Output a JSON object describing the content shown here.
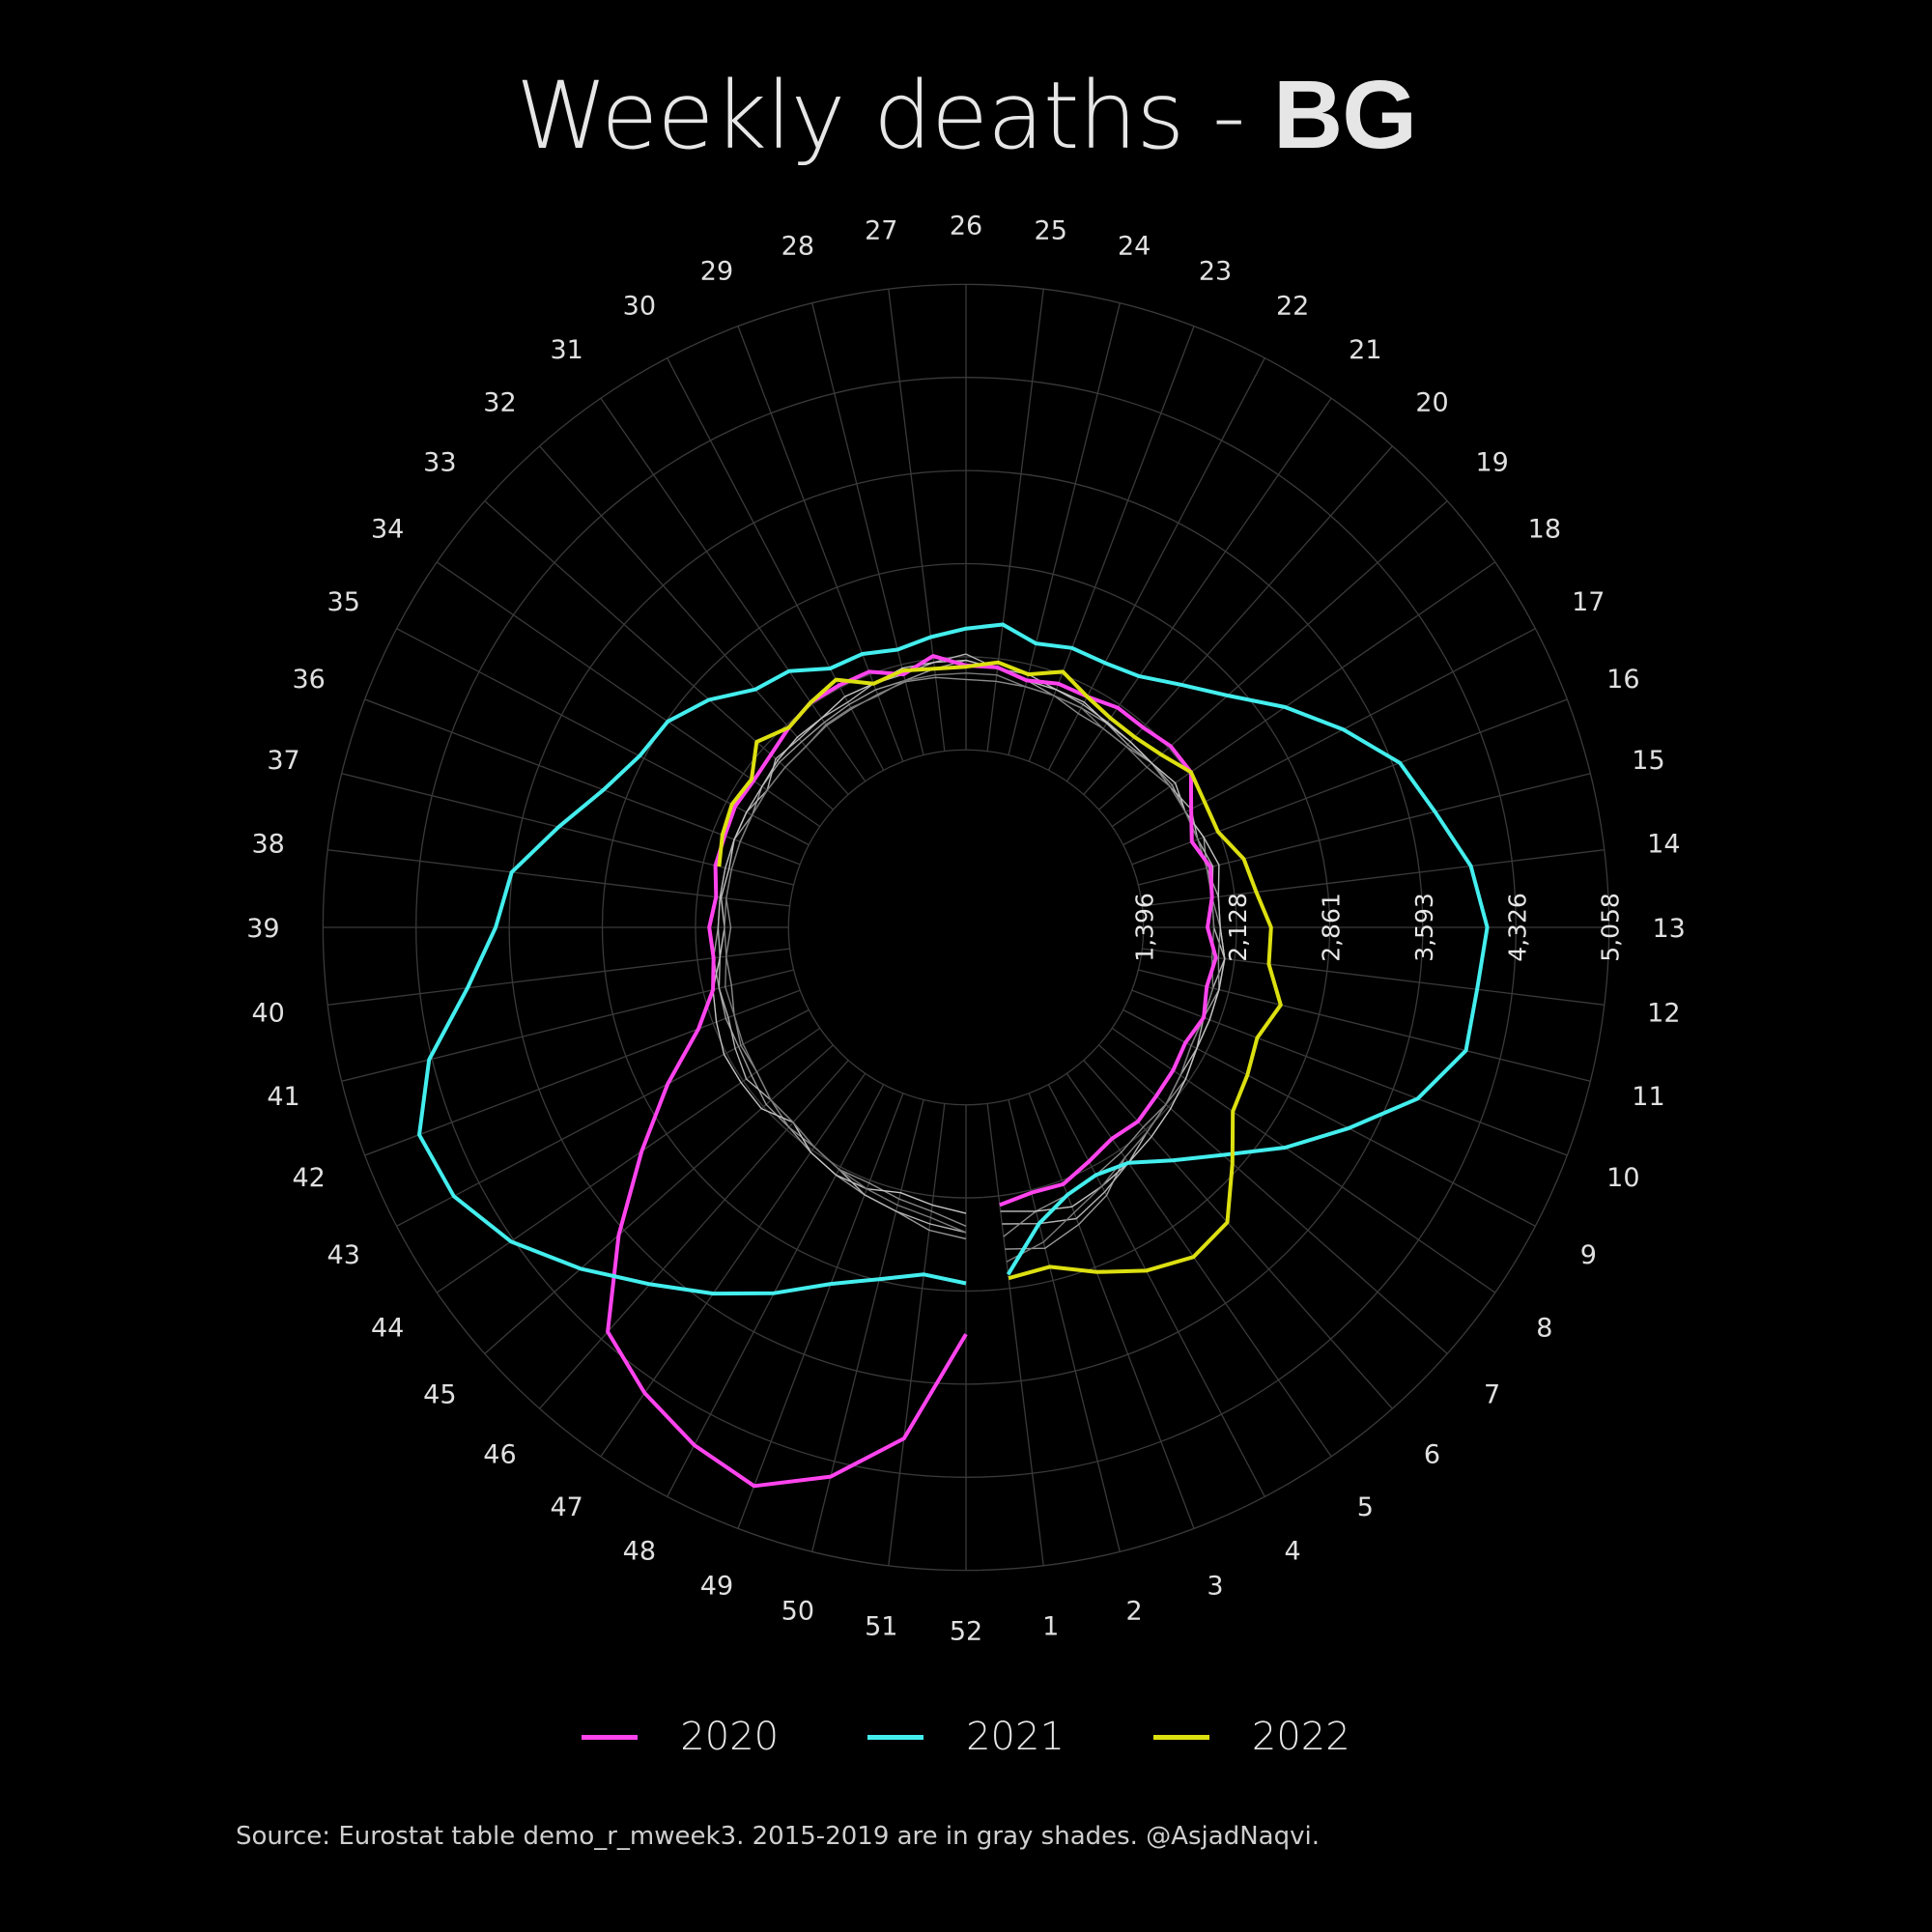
{
  "title": {
    "prefix": "Weekly deaths - ",
    "country": "BG"
  },
  "source": "Source: Eurostat table demo_r_mweek3. 2015-2019 are in gray shades. @AsjadNaqvi.",
  "chart_data": {
    "type": "radial-line",
    "title": "Weekly deaths - BG",
    "r_range": [
      0,
      5058
    ],
    "r_ticks": [
      1396,
      2128,
      2861,
      3593,
      4326,
      5058
    ],
    "r_tick_labels": [
      "1,396",
      "2,128",
      "2,861",
      "3,593",
      "4,326",
      "5,058"
    ],
    "angular_labels": [
      "1",
      "2",
      "3",
      "4",
      "5",
      "6",
      "7",
      "8",
      "9",
      "10",
      "11",
      "12",
      "13",
      "14",
      "15",
      "16",
      "17",
      "18",
      "19",
      "20",
      "21",
      "22",
      "23",
      "24",
      "25",
      "26",
      "27",
      "28",
      "29",
      "30",
      "31",
      "32",
      "33",
      "34",
      "35",
      "36",
      "37",
      "38",
      "39",
      "40",
      "41",
      "42",
      "43",
      "44",
      "45",
      "46",
      "47",
      "48",
      "49",
      "50",
      "51",
      "52"
    ],
    "legend_position": "bottom",
    "series": [
      {
        "name": "2020",
        "color": "#ff44ee",
        "width": 4,
        "weeks": [
          1,
          2,
          3,
          4,
          5,
          6,
          7,
          8,
          9,
          10,
          11,
          12,
          13,
          14,
          15,
          16,
          17,
          18,
          19,
          20,
          21,
          22,
          23,
          24,
          25,
          26,
          27,
          28,
          29,
          30,
          31,
          32,
          33,
          34,
          35,
          36,
          37,
          38,
          39,
          40,
          41,
          42,
          43,
          44,
          45,
          46,
          47,
          48,
          49,
          50,
          51,
          52
        ],
        "values": [
          2200,
          2150,
          2160,
          2080,
          2020,
          2040,
          2000,
          1980,
          1950,
          2000,
          1950,
          1980,
          1900,
          1950,
          1980,
          1900,
          2000,
          2150,
          2150,
          2100,
          2100,
          2050,
          2050,
          2000,
          2060,
          2060,
          2150,
          2050,
          2150,
          2150,
          2150,
          2100,
          2050,
          2030,
          2050,
          2030,
          2030,
          1980,
          2020,
          2000,
          2050,
          2250,
          2650,
          3100,
          3650,
          4250,
          4450,
          4600,
          4700,
          4450,
          4050,
          3200
        ]
      },
      {
        "name": "2021",
        "color": "#44eeee",
        "width": 4,
        "weeks": [
          1,
          2,
          3,
          4,
          5,
          6,
          7,
          8,
          9,
          10,
          11,
          12,
          13,
          14,
          15,
          16,
          17,
          18,
          19,
          20,
          21,
          22,
          23,
          24,
          25,
          26,
          27,
          28,
          29,
          30,
          31,
          32,
          33,
          34,
          35,
          36,
          37,
          38,
          39,
          40,
          41,
          42,
          43,
          44,
          45,
          46,
          47,
          48,
          49,
          50,
          51,
          52
        ],
        "values": [
          2750,
          2400,
          2250,
          2200,
          2250,
          2450,
          2700,
          3050,
          3400,
          3800,
          4050,
          4050,
          4100,
          4000,
          3800,
          3650,
          3350,
          3050,
          2750,
          2550,
          2400,
          2350,
          2350,
          2300,
          2400,
          2350,
          2300,
          2250,
          2300,
          2300,
          2450,
          2500,
          2700,
          2850,
          2900,
          3050,
          3300,
          3600,
          3700,
          3950,
          4350,
          4600,
          4550,
          4350,
          4050,
          3750,
          3500,
          3250,
          3000,
          2850,
          2750,
          2800
        ]
      },
      {
        "name": "2022",
        "color": "#dde010",
        "width": 4,
        "weeks": [
          1,
          2,
          3,
          4,
          5,
          6,
          7,
          8,
          9,
          10,
          11,
          12,
          13,
          14,
          15,
          16,
          17,
          18,
          19,
          20,
          21,
          22,
          23,
          24,
          25,
          26,
          27,
          28,
          29,
          30,
          31,
          32,
          33,
          34,
          35,
          36,
          37
        ],
        "values": [
          2780,
          2750,
          2900,
          3050,
          3150,
          3100,
          2800,
          2550,
          2500,
          2450,
          2550,
          2400,
          2400,
          2300,
          2250,
          2120,
          2120,
          2150,
          2050,
          2000,
          2000,
          2050,
          2150,
          2050,
          2100,
          2050,
          2050,
          2080,
          2050,
          2200,
          2150,
          2100,
          2200,
          2050,
          2080,
          2050,
          2000
        ]
      },
      {
        "name": "",
        "color": "#9a9a9a",
        "width": 1.4,
        "weeks": [
          1,
          2,
          3,
          4,
          5,
          6,
          7,
          8,
          9,
          10,
          11,
          12,
          13,
          14,
          15,
          16,
          17,
          18,
          19,
          20,
          21,
          22,
          23,
          24,
          25,
          26,
          27,
          28,
          29,
          30,
          31,
          32,
          33,
          34,
          35,
          36,
          37,
          38,
          39,
          40,
          41,
          42,
          43,
          44,
          45,
          46,
          47,
          48,
          49,
          50,
          51,
          52
        ],
        "values": [
          2550,
          2600,
          2500,
          2380,
          2200,
          2150,
          2100,
          2050,
          2000,
          2000,
          2050,
          2050,
          2000,
          2000,
          1950,
          2000,
          1950,
          1970,
          1950,
          1920,
          1950,
          1950,
          1950,
          2000,
          2050,
          2100,
          2050,
          2000,
          2000,
          1980,
          1960,
          1950,
          1960,
          1950,
          1900,
          1950,
          1950,
          1950,
          1950,
          2000,
          2000,
          2020,
          2020,
          2050,
          2100,
          2100,
          2150,
          2200,
          2250,
          2300,
          2400,
          2450
        ]
      },
      {
        "name": "",
        "color": "#b4b4b4",
        "width": 1.4,
        "weeks": [
          1,
          2,
          3,
          4,
          5,
          6,
          7,
          8,
          9,
          10,
          11,
          12,
          13,
          14,
          15,
          16,
          17,
          18,
          19,
          20,
          21,
          22,
          23,
          24,
          25,
          26,
          27,
          28,
          29,
          30,
          31,
          32,
          33,
          34,
          35,
          36,
          37,
          38,
          39,
          40,
          41,
          42,
          43,
          44,
          45,
          46,
          47,
          48,
          49,
          50,
          51,
          52
        ],
        "values": [
          2350,
          2400,
          2450,
          2350,
          2250,
          2150,
          2100,
          2050,
          2050,
          2000,
          2000,
          2050,
          1950,
          1950,
          2000,
          1950,
          2000,
          1950,
          1950,
          1950,
          1960,
          1980,
          2000,
          2050,
          2050,
          2150,
          2100,
          2050,
          2050,
          2000,
          2000,
          1980,
          2000,
          1900,
          1950,
          1950,
          1950,
          1950,
          1950,
          1950,
          2000,
          2000,
          2050,
          2100,
          2050,
          2050,
          2100,
          2150,
          2250,
          2300,
          2350,
          2400
        ]
      },
      {
        "name": "",
        "color": "#8a8a8a",
        "width": 1.4,
        "weeks": [
          1,
          2,
          3,
          4,
          5,
          6,
          7,
          8,
          9,
          10,
          11,
          12,
          13,
          14,
          15,
          16,
          17,
          18,
          19,
          20,
          21,
          22,
          23,
          24,
          25,
          26,
          27,
          28,
          29,
          30,
          31,
          32,
          33,
          34,
          35,
          36,
          37,
          38,
          39,
          40,
          41,
          42,
          43,
          44,
          45,
          46,
          47,
          48,
          49,
          50,
          51,
          52
        ],
        "values": [
          2450,
          2300,
          2250,
          2200,
          2150,
          2100,
          2100,
          2100,
          2050,
          2050,
          2050,
          2000,
          2000,
          1950,
          1950,
          1950,
          1950,
          1950,
          1950,
          1900,
          1900,
          1900,
          1950,
          1950,
          1950,
          1950,
          1980,
          1990,
          1960,
          1940,
          1930,
          1900,
          1900,
          1900,
          1900,
          1900,
          1900,
          1900,
          1850,
          1900,
          1900,
          1950,
          2000,
          2000,
          2050,
          2100,
          2100,
          2150,
          2150,
          2200,
          2250,
          2350
        ]
      },
      {
        "name": "",
        "color": "#c4c4c4",
        "width": 1.4,
        "weeks": [
          1,
          2,
          3,
          4,
          5,
          6,
          7,
          8,
          9,
          10,
          11,
          12,
          13,
          14,
          15,
          16,
          17,
          18,
          19,
          20,
          21,
          22,
          23,
          24,
          25,
          26,
          27,
          28,
          29,
          30,
          31,
          32,
          33,
          34,
          35,
          36,
          37,
          38,
          39,
          40,
          41,
          42,
          43,
          44,
          45,
          46,
          47,
          48,
          49,
          50,
          51,
          52
        ],
        "values": [
          2250,
          2300,
          2350,
          2300,
          2250,
          2200,
          2150,
          2100,
          2050,
          2050,
          2050,
          2050,
          2000,
          2000,
          2050,
          2000,
          1950,
          2000,
          1950,
          1950,
          1950,
          2000,
          2000,
          2000,
          2050,
          2100,
          2100,
          2100,
          2050,
          2050,
          2000,
          2000,
          1980,
          1950,
          1950,
          1950,
          1920,
          1940,
          1900,
          1950,
          2050,
          2100,
          2150,
          2150,
          2150,
          2050,
          2150,
          2200,
          2200,
          2150,
          2200,
          2250
        ]
      },
      {
        "name": "",
        "color": "#7a7a7a",
        "width": 1.4,
        "weeks": [
          1,
          2,
          3,
          4,
          5,
          6,
          7,
          8,
          9,
          10,
          11,
          12,
          13,
          14,
          15,
          16,
          17,
          18,
          19,
          20,
          21,
          22,
          23,
          24,
          25,
          26,
          27,
          28,
          29,
          30,
          31,
          32,
          33,
          34,
          35,
          36,
          37,
          38,
          39,
          40,
          41,
          42,
          43,
          44,
          45,
          46,
          47,
          48,
          49,
          50,
          51,
          52
        ],
        "values": [
          2650,
          2550,
          2400,
          2300,
          2200,
          2150,
          2100,
          2050,
          2000,
          2000,
          2000,
          1950,
          1950,
          1950,
          1950,
          1950,
          1950,
          1950,
          1900,
          1900,
          1900,
          1950,
          1950,
          1950,
          2000,
          2000,
          2000,
          2000,
          1950,
          1950,
          1940,
          1900,
          1900,
          1900,
          1900,
          1900,
          1900,
          1900,
          1900,
          1900,
          1950,
          1950,
          1980,
          2000,
          2050,
          2050,
          2100,
          2150,
          2200,
          2250,
          2300,
          2400
        ]
      }
    ]
  },
  "legend": [
    {
      "label": "2020",
      "color": "#ff44ee"
    },
    {
      "label": "2021",
      "color": "#44eeee"
    },
    {
      "label": "2022",
      "color": "#dde010"
    }
  ]
}
